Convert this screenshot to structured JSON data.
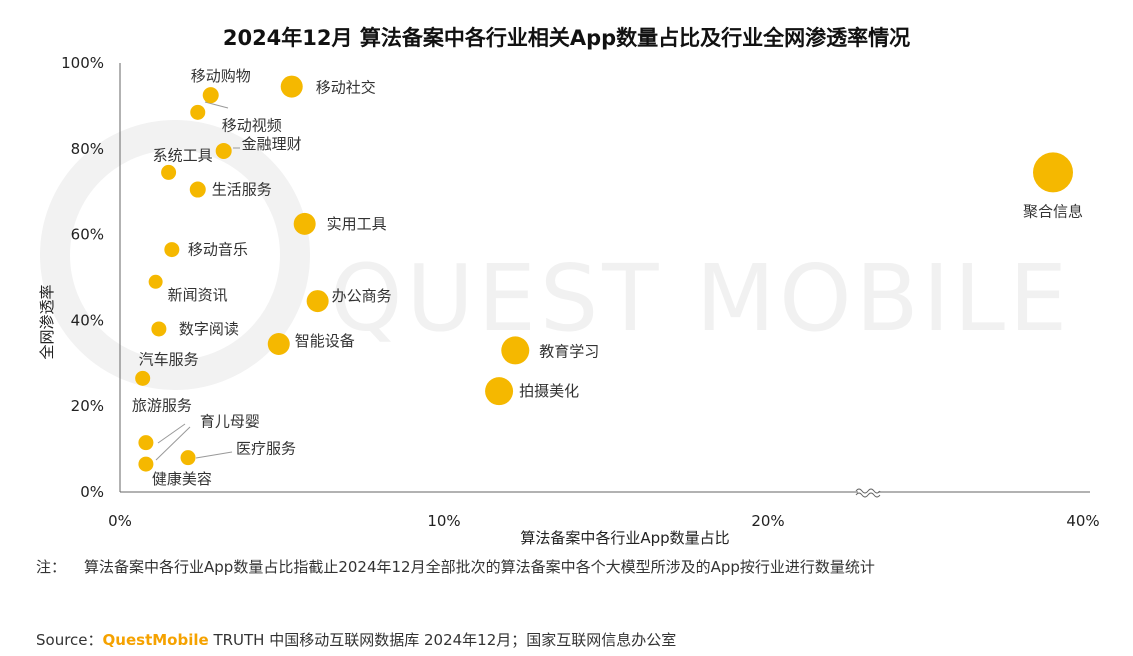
{
  "title": "2024年12月 算法备案中各行业相关App数量占比及行业全网渗透率情况",
  "watermark": "QUEST MOBILE",
  "note": {
    "label": "注：",
    "text": "算法备案中各行业App数量占比指截止2024年12月全部批次的算法备案中各个大模型所涉及的App按行业进行数量统计"
  },
  "source": {
    "label": "Source：",
    "brand": "QuestMobile",
    "text": " TRUTH 中国移动互联网数据库 2024年12月；国家互联网信息办公室"
  },
  "colors": {
    "bubble": "#f5b800",
    "axis": "#666666",
    "brand": "#f5a200"
  },
  "chart_data": {
    "type": "scatter",
    "title": "2024年12月 算法备案中各行业相关App数量占比及行业全网渗透率情况",
    "xlabel": "算法备案中各行业App数量占比",
    "ylabel": "全网渗透率",
    "x_axis_break": true,
    "x_ticks": [
      "0%",
      "10%",
      "20%",
      "40%"
    ],
    "y_ticks": [
      "0%",
      "20%",
      "40%",
      "60%",
      "80%",
      "100%"
    ],
    "ylim": [
      0,
      100
    ],
    "points": [
      {
        "name": "移动社交",
        "x": 5.3,
        "y": 94.5,
        "size": 11
      },
      {
        "name": "移动购物",
        "x": 2.8,
        "y": 92.5,
        "size": 8
      },
      {
        "name": "移动视频",
        "x": 2.4,
        "y": 88.5,
        "size": 7.5
      },
      {
        "name": "金融理财",
        "x": 3.2,
        "y": 79.5,
        "size": 8
      },
      {
        "name": "系统工具",
        "x": 1.5,
        "y": 74.5,
        "size": 7.5
      },
      {
        "name": "生活服务",
        "x": 2.4,
        "y": 70.5,
        "size": 8
      },
      {
        "name": "实用工具",
        "x": 5.7,
        "y": 62.5,
        "size": 11
      },
      {
        "name": "移动音乐",
        "x": 1.6,
        "y": 56.5,
        "size": 7.5
      },
      {
        "name": "新闻资讯",
        "x": 1.1,
        "y": 49.0,
        "size": 7
      },
      {
        "name": "办公商务",
        "x": 6.1,
        "y": 44.5,
        "size": 11
      },
      {
        "name": "数字阅读",
        "x": 1.2,
        "y": 38.0,
        "size": 7.5
      },
      {
        "name": "智能设备",
        "x": 4.9,
        "y": 34.5,
        "size": 11
      },
      {
        "name": "汽车服务",
        "x": 0.7,
        "y": 26.5,
        "size": 7.5
      },
      {
        "name": "育儿母婴",
        "x": 0.8,
        "y": 11.5,
        "size": 7.5
      },
      {
        "name": "健康美容",
        "x": 0.8,
        "y": 6.5,
        "size": 7.5
      },
      {
        "name": "医疗服务",
        "x": 2.1,
        "y": 8.0,
        "size": 7.5
      },
      {
        "name": "旅游服务",
        "x": 0.8,
        "y": 6.0,
        "size": 0
      },
      {
        "name": "教育学习",
        "x": 12.2,
        "y": 33.0,
        "size": 14
      },
      {
        "name": "拍摄美化",
        "x": 11.7,
        "y": 23.5,
        "size": 14
      },
      {
        "name": "聚合信息",
        "x": 37.5,
        "y": 74.5,
        "size": 20
      }
    ]
  }
}
